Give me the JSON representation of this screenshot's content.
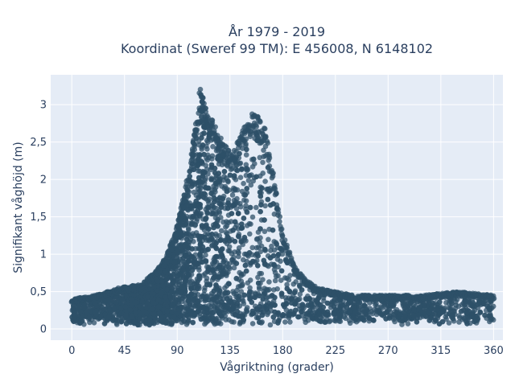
{
  "chart_data": {
    "type": "scatter",
    "title_lines": [
      "År 1979 - 2019",
      "Koordinat (Sweref 99 TM): E 456008, N 6148102"
    ],
    "xlabel": "Vågriktning (grader)",
    "ylabel": "Signifikant våghöjd (m)",
    "xlim": [
      -18,
      368
    ],
    "ylim": [
      -0.15,
      3.4
    ],
    "x_ticks": [
      0,
      45,
      90,
      135,
      180,
      225,
      270,
      315,
      360
    ],
    "x_tick_labels": [
      "0",
      "45",
      "90",
      "135",
      "180",
      "225",
      "270",
      "315",
      "360"
    ],
    "y_ticks": [
      0,
      0.5,
      1,
      1.5,
      2,
      2.5,
      3
    ],
    "y_tick_labels": [
      "0",
      "0,5",
      "1",
      "1,5",
      "2",
      "2,5",
      "3"
    ],
    "grid": true,
    "legend": "none",
    "colors": {
      "plot_bg": "#e5ecf6",
      "marker": "#2e5068",
      "text": "#2a3f5f"
    },
    "envelope": {
      "x": [
        0,
        20,
        40,
        60,
        70,
        80,
        90,
        100,
        105,
        110,
        115,
        120,
        125,
        130,
        135,
        140,
        145,
        150,
        155,
        160,
        165,
        170,
        175,
        180,
        190,
        200,
        210,
        225,
        240,
        270,
        300,
        330,
        360
      ],
      "y": [
        0.4,
        0.45,
        0.55,
        0.6,
        0.75,
        0.95,
        1.4,
        2.1,
        2.7,
        3.25,
        2.9,
        2.8,
        2.6,
        2.5,
        2.35,
        2.45,
        2.7,
        2.8,
        2.95,
        2.8,
        2.7,
        2.3,
        1.8,
        1.3,
        0.85,
        0.65,
        0.55,
        0.5,
        0.45,
        0.45,
        0.45,
        0.5,
        0.45
      ]
    }
  }
}
